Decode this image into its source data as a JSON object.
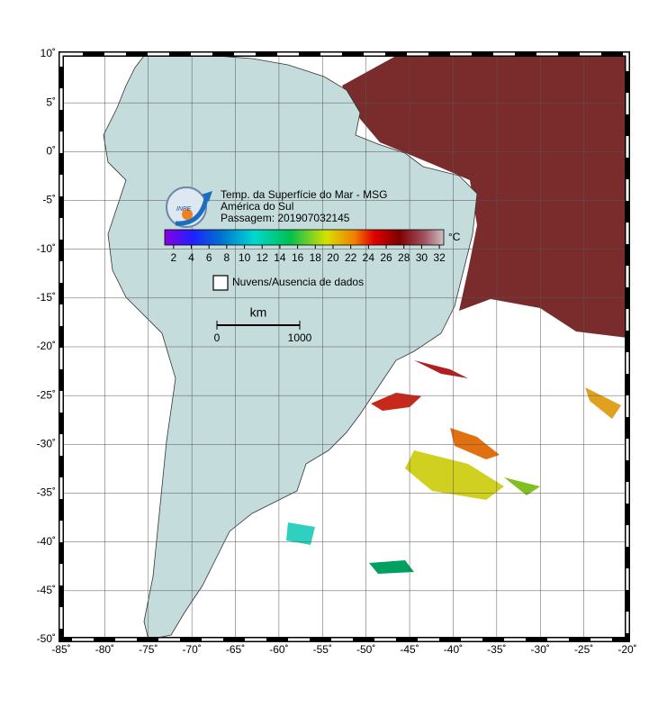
{
  "map": {
    "title_lines": [
      "Temp. da Superfície do Mar - MSG",
      "América do Sul",
      "Passagem: 201907032145"
    ],
    "logo": "INPE",
    "xlim": [
      -85,
      -20
    ],
    "ylim": [
      -50,
      10
    ],
    "xticks": [
      {
        "value": -85,
        "label": "-85˚"
      },
      {
        "value": -80,
        "label": "-80˚"
      },
      {
        "value": -75,
        "label": "-75˚"
      },
      {
        "value": -70,
        "label": "-70˚"
      },
      {
        "value": -65,
        "label": "-65˚"
      },
      {
        "value": -60,
        "label": "-60˚"
      },
      {
        "value": -55,
        "label": "-55˚"
      },
      {
        "value": -50,
        "label": "-50˚"
      },
      {
        "value": -45,
        "label": "-45˚"
      },
      {
        "value": -40,
        "label": "-40˚"
      },
      {
        "value": -35,
        "label": "-35˚"
      },
      {
        "value": -30,
        "label": "-30˚"
      },
      {
        "value": -25,
        "label": "-25˚"
      },
      {
        "value": -20,
        "label": "-20˚"
      }
    ],
    "yticks": [
      {
        "value": 10,
        "label": "10˚"
      },
      {
        "value": 5,
        "label": "5˚"
      },
      {
        "value": 0,
        "label": "0˚"
      },
      {
        "value": -5,
        "label": "-5˚"
      },
      {
        "value": -10,
        "label": "-10˚"
      },
      {
        "value": -15,
        "label": "-15˚"
      },
      {
        "value": -20,
        "label": "-20˚"
      },
      {
        "value": -25,
        "label": "-25˚"
      },
      {
        "value": -30,
        "label": "-30˚"
      },
      {
        "value": -35,
        "label": "-35˚"
      },
      {
        "value": -40,
        "label": "-40˚"
      },
      {
        "value": -45,
        "label": "-45˚"
      },
      {
        "value": -50,
        "label": "-50˚"
      }
    ],
    "colorbar": {
      "unit": "°C",
      "lim": [
        1,
        32.5
      ],
      "ticks": [
        2,
        4,
        6,
        8,
        10,
        12,
        14,
        16,
        18,
        20,
        22,
        24,
        26,
        28,
        30,
        32
      ]
    },
    "legend": "Nuvens/Ausencia de dados",
    "scale_bar": {
      "unit": "km",
      "labels": [
        "0",
        "1000"
      ]
    }
  }
}
